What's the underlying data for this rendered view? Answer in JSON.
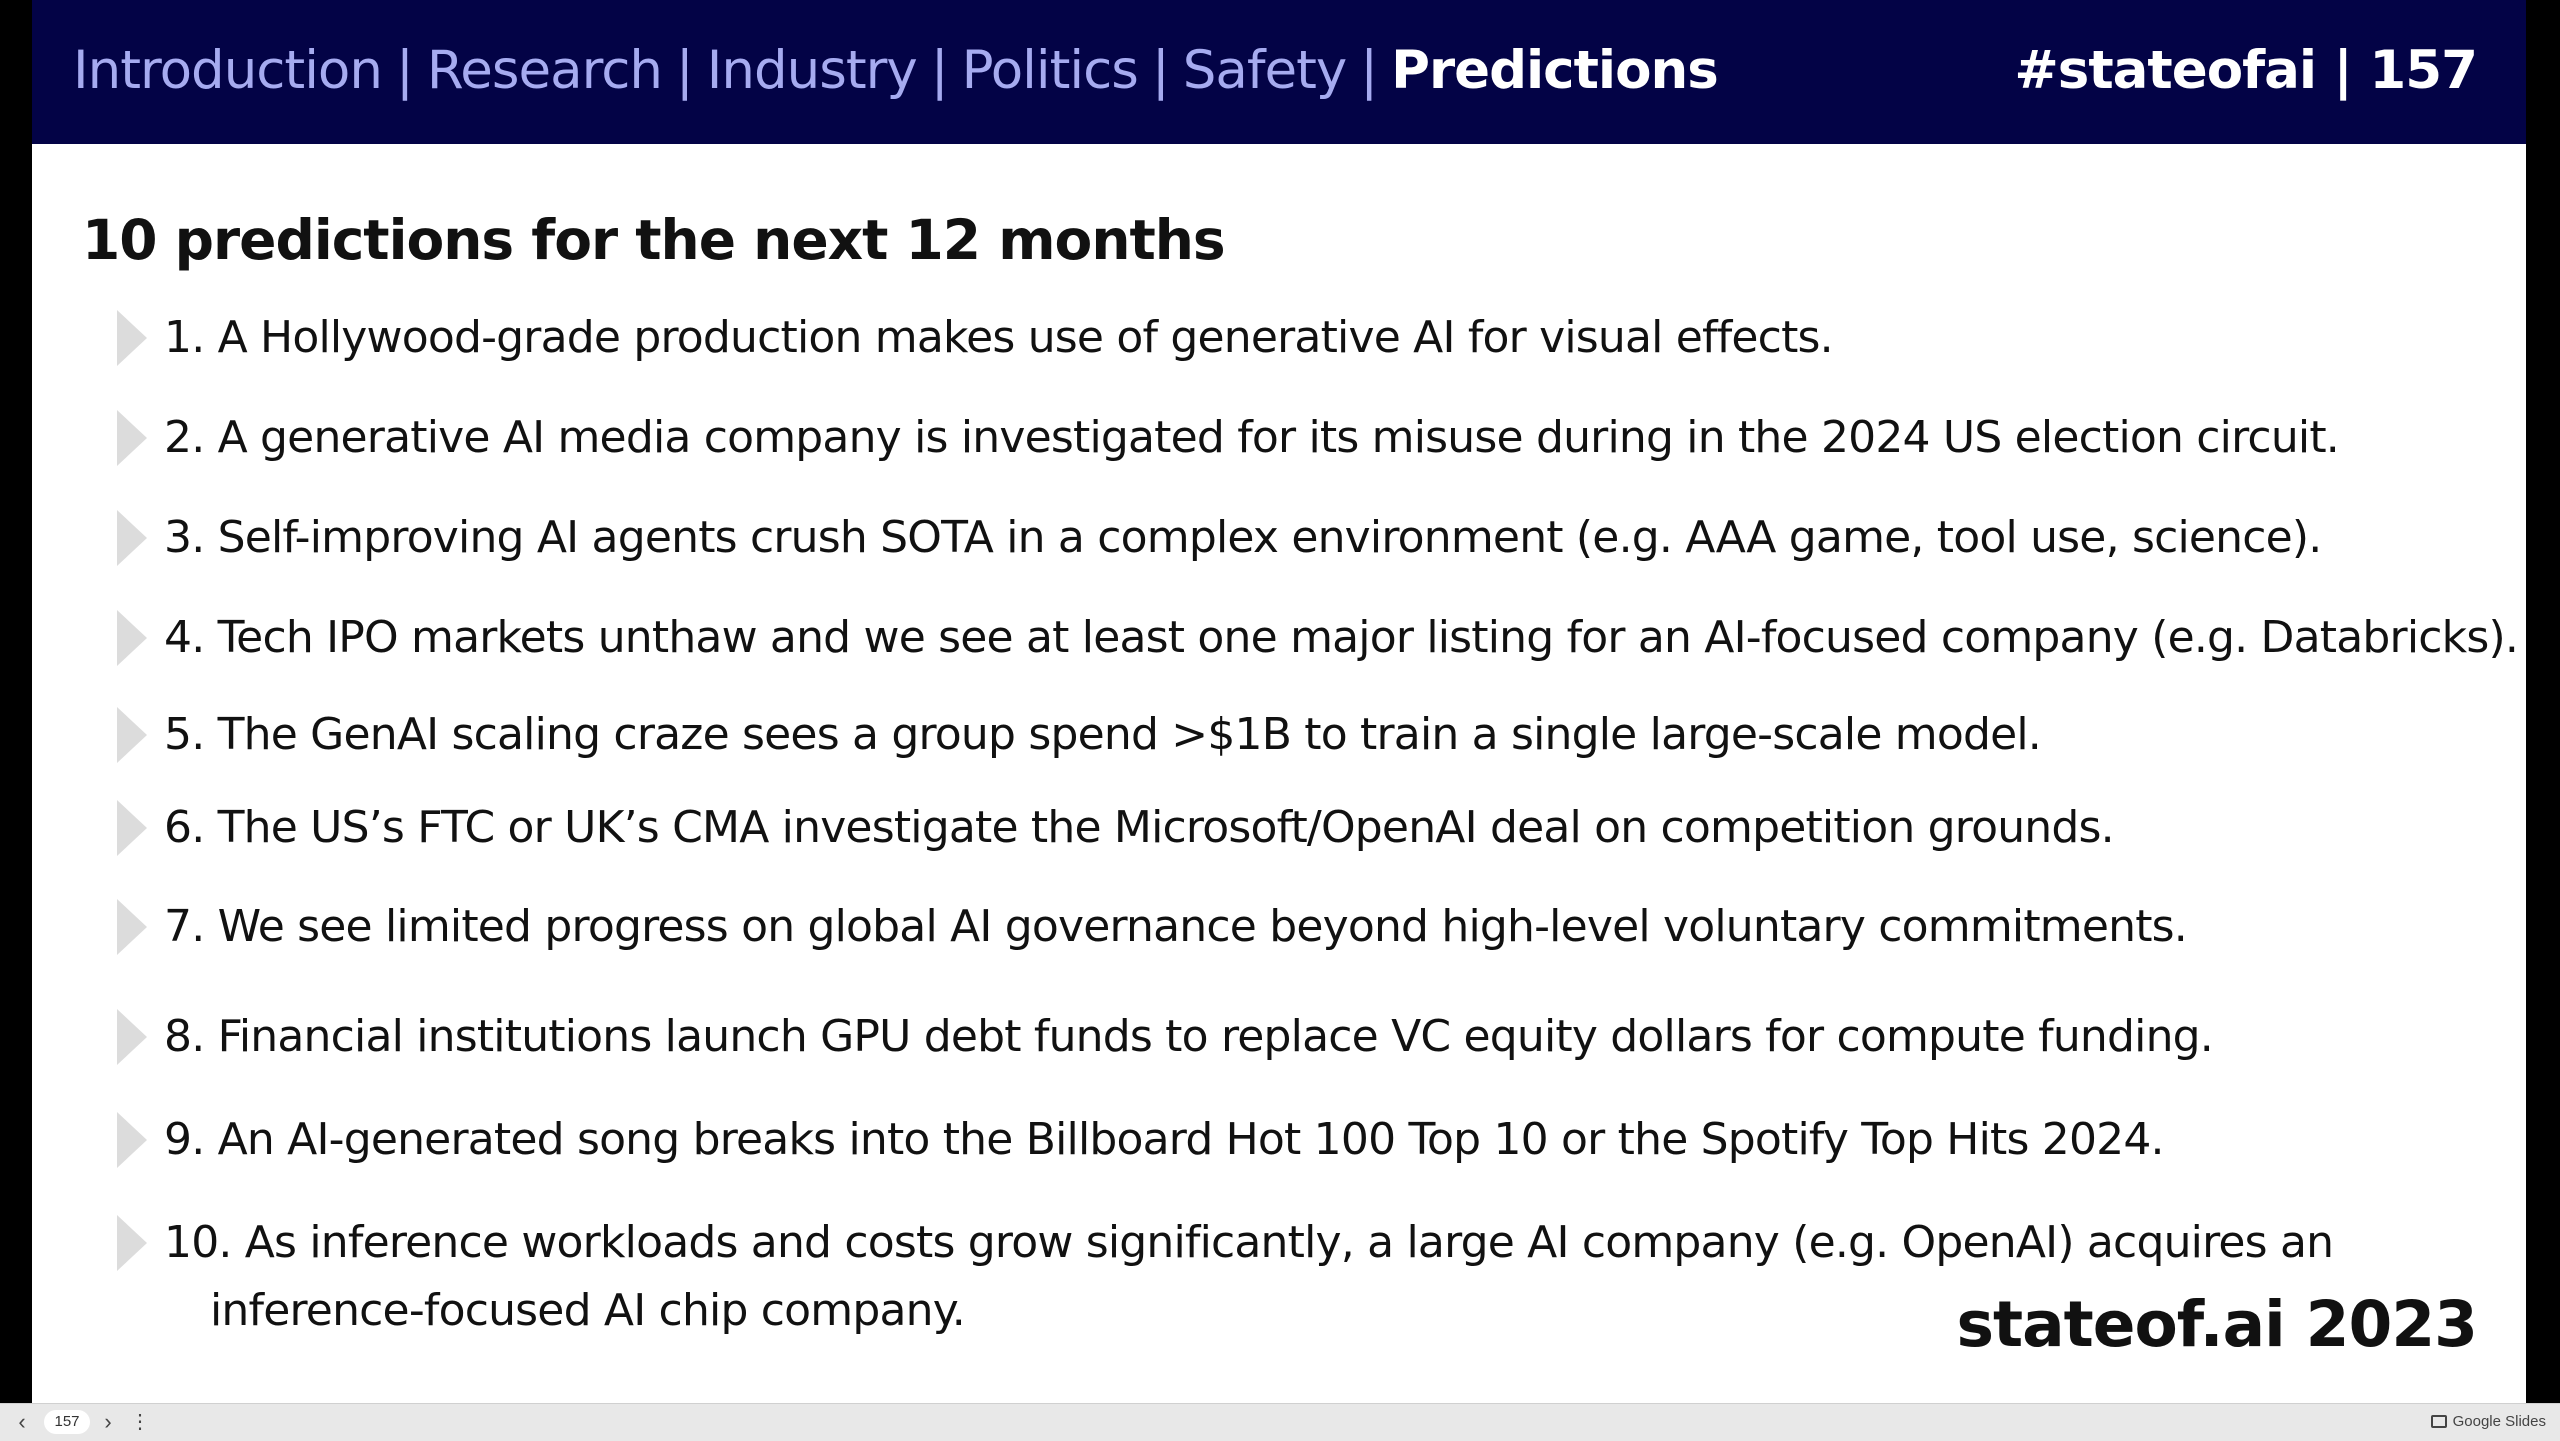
{
  "header": {
    "nav_items": [
      {
        "label": "Introduction",
        "active": false
      },
      {
        "label": "Research",
        "active": false
      },
      {
        "label": "Industry",
        "active": false
      },
      {
        "label": "Politics",
        "active": false
      },
      {
        "label": "Safety",
        "active": false
      },
      {
        "label": "Predictions",
        "active": true
      }
    ],
    "separator": "|",
    "tag": "#stateofai | 157"
  },
  "slide": {
    "title": "10 predictions for the next 12 months",
    "items": [
      {
        "text": "1. A Hollywood-grade production makes use of generative AI for visual effects."
      },
      {
        "text": "2. A generative AI media company is investigated for its misuse during in the 2024 US election circuit."
      },
      {
        "text": "3. Self-improving AI agents crush SOTA in a complex environment (e.g. AAA game, tool use, science)."
      },
      {
        "text": "4. Tech IPO markets unthaw and we see at least one major listing for an AI-focused company (e.g. Databricks)."
      },
      {
        "text": "5. The GenAI scaling craze sees a group spend >$1B to train a single large-scale model."
      },
      {
        "text": "6. The US’s FTC or UK’s CMA investigate the Microsoft/OpenAI deal on competition grounds."
      },
      {
        "text": "7. We see limited progress on global AI governance beyond high-level voluntary commitments."
      },
      {
        "text": "8. Financial institutions launch GPU debt funds to replace VC equity dollars for compute funding."
      },
      {
        "text": "9. An AI-generated song breaks into the Billboard Hot 100 Top 10 or the Spotify Top Hits 2024."
      },
      {
        "text": "10. As inference workloads and costs grow significantly, a large AI company (e.g. OpenAI) acquires an",
        "continuation": "inference-focused AI chip company."
      }
    ],
    "brand": "stateof.ai 2023"
  },
  "viewer": {
    "prev_icon": "chevron-left-icon",
    "page_number": "157",
    "next_icon": "chevron-right-icon",
    "menu_icon": "more-vertical-icon",
    "app_label": "Google Slides"
  },
  "colors": {
    "header_background": "#030346",
    "nav_inactive": "#a6abf0",
    "nav_active": "#ffffff",
    "bullet": "#dcdcdc"
  }
}
